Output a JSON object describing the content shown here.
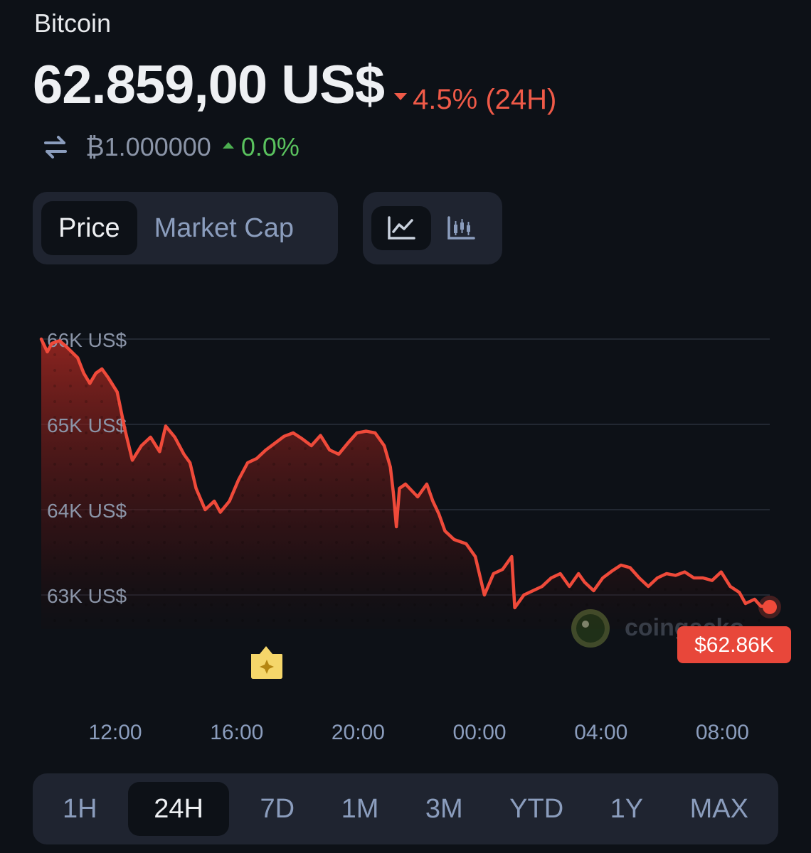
{
  "coin": {
    "name": "Bitcoin"
  },
  "price": {
    "value": "62.859,00 US$",
    "change_24h": "4.5% (24H)",
    "change_direction": "down"
  },
  "btc_rate": {
    "amount": "₿1.000000",
    "change": "0.0%",
    "change_direction": "up"
  },
  "toggles": {
    "metric": [
      "Price",
      "Market Cap"
    ],
    "metric_selected": "Price",
    "chart_type": [
      "line-chart-icon",
      "candlestick-chart-icon"
    ],
    "chart_type_selected": "line-chart-icon"
  },
  "chart_data": {
    "type": "area",
    "y_ticks": [
      "66K US$",
      "65K US$",
      "64K US$",
      "63K US$"
    ],
    "y_tick_values": [
      66000,
      65000,
      64000,
      63000
    ],
    "ylim": [
      62600,
      66100
    ],
    "x_ticks": [
      "12:00",
      "16:00",
      "20:00",
      "00:00",
      "04:00",
      "08:00"
    ],
    "x_tick_hours": [
      2.44,
      6.44,
      10.44,
      14.44,
      18.44,
      22.44
    ],
    "xlim": [
      0,
      24
    ],
    "grid": true,
    "series": [
      {
        "color": "#ef4a3a",
        "values": [
          [
            0,
            66000
          ],
          [
            0.2,
            65850
          ],
          [
            0.35,
            65950
          ],
          [
            0.6,
            65980
          ],
          [
            0.8,
            65920
          ],
          [
            1.0,
            65850
          ],
          [
            1.2,
            65780
          ],
          [
            1.4,
            65600
          ],
          [
            1.6,
            65480
          ],
          [
            1.8,
            65600
          ],
          [
            2.0,
            65650
          ],
          [
            2.2,
            65550
          ],
          [
            2.5,
            65380
          ],
          [
            2.75,
            64950
          ],
          [
            3.0,
            64580
          ],
          [
            3.3,
            64750
          ],
          [
            3.6,
            64850
          ],
          [
            3.9,
            64680
          ],
          [
            4.1,
            64980
          ],
          [
            4.4,
            64850
          ],
          [
            4.7,
            64650
          ],
          [
            4.9,
            64550
          ],
          [
            5.1,
            64250
          ],
          [
            5.4,
            64000
          ],
          [
            5.7,
            64100
          ],
          [
            5.9,
            63970
          ],
          [
            6.2,
            64100
          ],
          [
            6.5,
            64350
          ],
          [
            6.8,
            64550
          ],
          [
            7.1,
            64600
          ],
          [
            7.4,
            64700
          ],
          [
            7.7,
            64780
          ],
          [
            8.0,
            64860
          ],
          [
            8.3,
            64900
          ],
          [
            8.6,
            64830
          ],
          [
            8.9,
            64750
          ],
          [
            9.2,
            64870
          ],
          [
            9.5,
            64700
          ],
          [
            9.8,
            64650
          ],
          [
            10.1,
            64780
          ],
          [
            10.4,
            64900
          ],
          [
            10.7,
            64920
          ],
          [
            11.0,
            64900
          ],
          [
            11.3,
            64750
          ],
          [
            11.5,
            64500
          ],
          [
            11.6,
            64200
          ],
          [
            11.7,
            63800
          ],
          [
            11.8,
            64250
          ],
          [
            12.0,
            64300
          ],
          [
            12.4,
            64150
          ],
          [
            12.7,
            64300
          ],
          [
            12.9,
            64100
          ],
          [
            13.1,
            63950
          ],
          [
            13.3,
            63750
          ],
          [
            13.6,
            63650
          ],
          [
            14.0,
            63600
          ],
          [
            14.3,
            63450
          ],
          [
            14.6,
            63000
          ],
          [
            14.9,
            63250
          ],
          [
            15.2,
            63300
          ],
          [
            15.5,
            63450
          ],
          [
            15.6,
            62850
          ],
          [
            15.9,
            63000
          ],
          [
            16.2,
            63050
          ],
          [
            16.5,
            63100
          ],
          [
            16.8,
            63200
          ],
          [
            17.1,
            63250
          ],
          [
            17.4,
            63100
          ],
          [
            17.7,
            63250
          ],
          [
            17.9,
            63150
          ],
          [
            18.2,
            63050
          ],
          [
            18.5,
            63200
          ],
          [
            18.8,
            63280
          ],
          [
            19.1,
            63350
          ],
          [
            19.4,
            63320
          ],
          [
            19.7,
            63200
          ],
          [
            20.0,
            63100
          ],
          [
            20.3,
            63200
          ],
          [
            20.6,
            63250
          ],
          [
            20.9,
            63230
          ],
          [
            21.2,
            63270
          ],
          [
            21.5,
            63200
          ],
          [
            21.8,
            63200
          ],
          [
            22.1,
            63170
          ],
          [
            22.4,
            63270
          ],
          [
            22.7,
            63100
          ],
          [
            23.0,
            63030
          ],
          [
            23.2,
            62900
          ],
          [
            23.5,
            62950
          ],
          [
            23.7,
            62870
          ],
          [
            24.0,
            62859
          ]
        ]
      }
    ],
    "current_value_label": "$62.86K",
    "event_marker": {
      "hour": 7.0,
      "icon": "sparkle-icon"
    },
    "watermark": "coingecko"
  },
  "time_ranges": {
    "items": [
      "1H",
      "24H",
      "7D",
      "1M",
      "3M",
      "YTD",
      "1Y",
      "MAX"
    ],
    "selected": "24H"
  },
  "colors": {
    "background": "#0d1117",
    "panel": "#1f2430",
    "negative": "#ef5a48",
    "positive": "#5ac25e",
    "line": "#ef4a3a",
    "muted_text": "#8b9dbd"
  }
}
